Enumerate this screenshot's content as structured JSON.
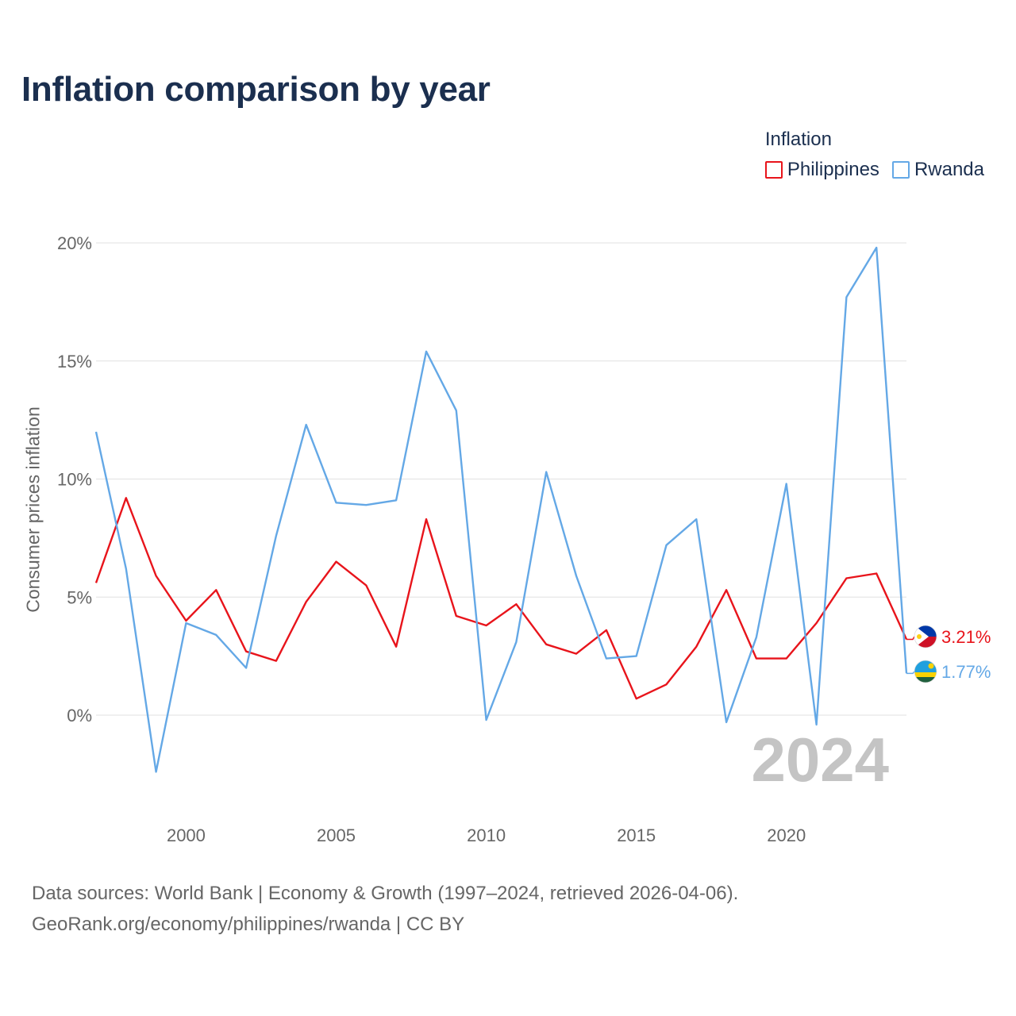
{
  "title": "Inflation comparison by year",
  "legend": {
    "title": "Inflation",
    "items": [
      {
        "name": "Philippines",
        "color": "#e8141b"
      },
      {
        "name": "Rwanda",
        "color": "#64a8e6"
      }
    ]
  },
  "footer": {
    "line1": "Data sources: World Bank | Economy & Growth (1997–2024, retrieved 2026-04-06).",
    "line2": "GeoRank.org/economy/philippines/rwanda | CC BY"
  },
  "chart_data": {
    "type": "line",
    "title": "Inflation comparison by year",
    "xlabel": "",
    "ylabel": "Consumer prices inflation",
    "watermark": "2024",
    "x": [
      1997,
      1998,
      1999,
      2000,
      2001,
      2002,
      2003,
      2004,
      2005,
      2006,
      2007,
      2008,
      2009,
      2010,
      2011,
      2012,
      2013,
      2014,
      2015,
      2016,
      2017,
      2018,
      2019,
      2020,
      2021,
      2022,
      2023,
      2024
    ],
    "xlim": [
      1997,
      2024
    ],
    "ylim": [
      -4,
      20
    ],
    "x_ticks": [
      2000,
      2005,
      2010,
      2015,
      2020
    ],
    "y_ticks": [
      0,
      5,
      10,
      15,
      20
    ],
    "y_tick_labels": [
      "0%",
      "5%",
      "10%",
      "15%",
      "20%"
    ],
    "grid": true,
    "legend_position": "top-right",
    "series": [
      {
        "name": "Philippines",
        "color": "#e8141b",
        "end_label": "3.21%",
        "values": [
          5.6,
          9.2,
          5.9,
          4.0,
          5.3,
          2.7,
          2.3,
          4.8,
          6.5,
          5.5,
          2.9,
          8.3,
          4.2,
          3.8,
          4.7,
          3.0,
          2.6,
          3.6,
          0.7,
          1.3,
          2.9,
          5.3,
          2.4,
          2.4,
          3.9,
          5.8,
          6.0,
          3.21
        ]
      },
      {
        "name": "Rwanda",
        "color": "#64a8e6",
        "end_label": "1.77%",
        "values": [
          12.0,
          6.2,
          -2.4,
          3.9,
          3.4,
          2.0,
          7.6,
          12.3,
          9.0,
          8.9,
          9.1,
          15.4,
          12.9,
          -0.2,
          3.1,
          10.3,
          5.9,
          2.4,
          2.5,
          7.2,
          8.3,
          -0.3,
          3.3,
          9.8,
          -0.4,
          17.7,
          19.8,
          1.77
        ]
      }
    ]
  }
}
